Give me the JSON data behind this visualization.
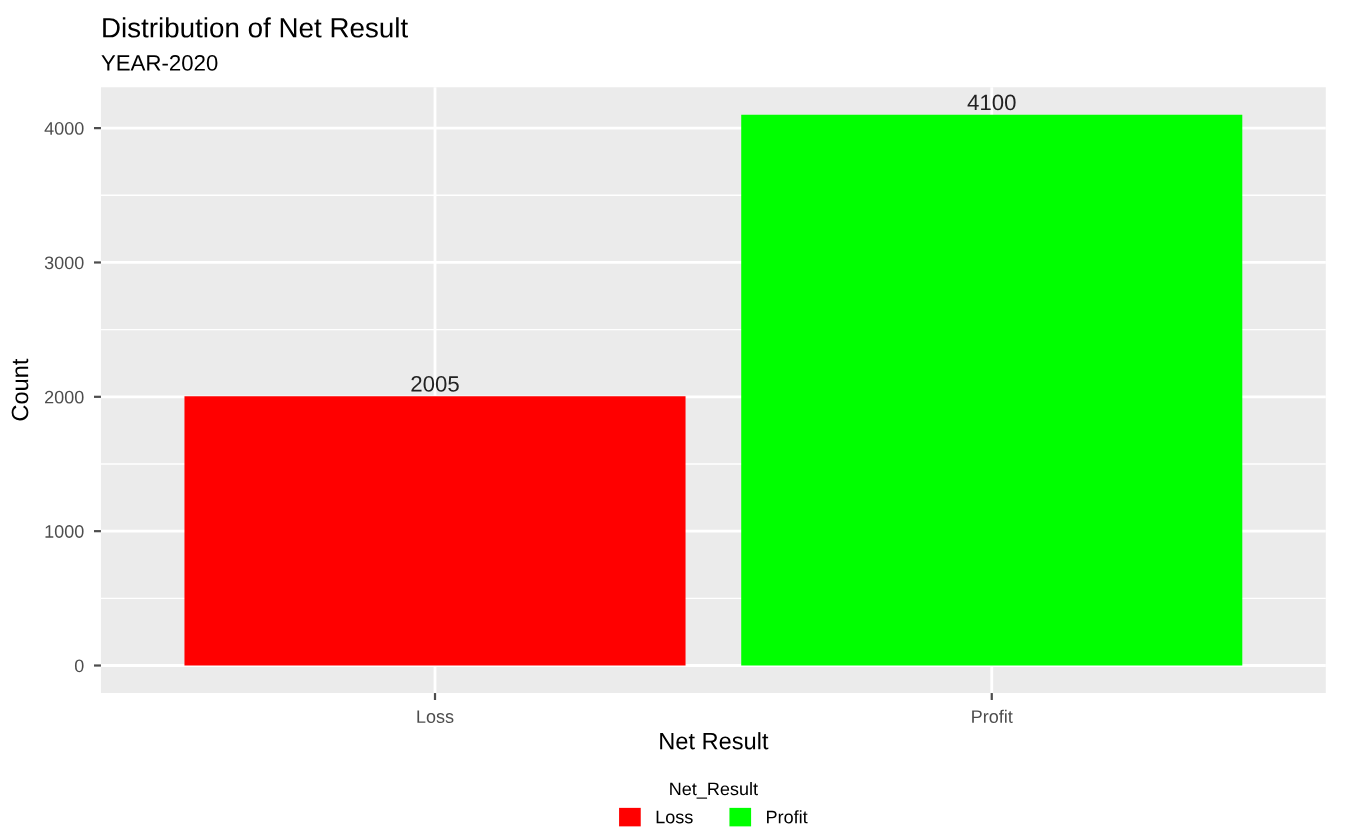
{
  "chart_data": {
    "type": "bar",
    "title": "Distribution of Net Result",
    "subtitle": "YEAR-2020",
    "xlabel": "Net Result",
    "ylabel": "Count",
    "legend_title": "Net_Result",
    "categories": [
      "Loss",
      "Profit"
    ],
    "series": [
      {
        "name": "Loss",
        "color": "#ff0000",
        "values": [
          2005,
          null
        ]
      },
      {
        "name": "Profit",
        "color": "#00ff00",
        "values": [
          null,
          4100
        ]
      }
    ],
    "ylim": [
      -205,
      4305
    ],
    "yticks": [
      0,
      1000,
      2000,
      3000,
      4000
    ],
    "grid": true,
    "legend": "bottom",
    "data_labels": true
  }
}
